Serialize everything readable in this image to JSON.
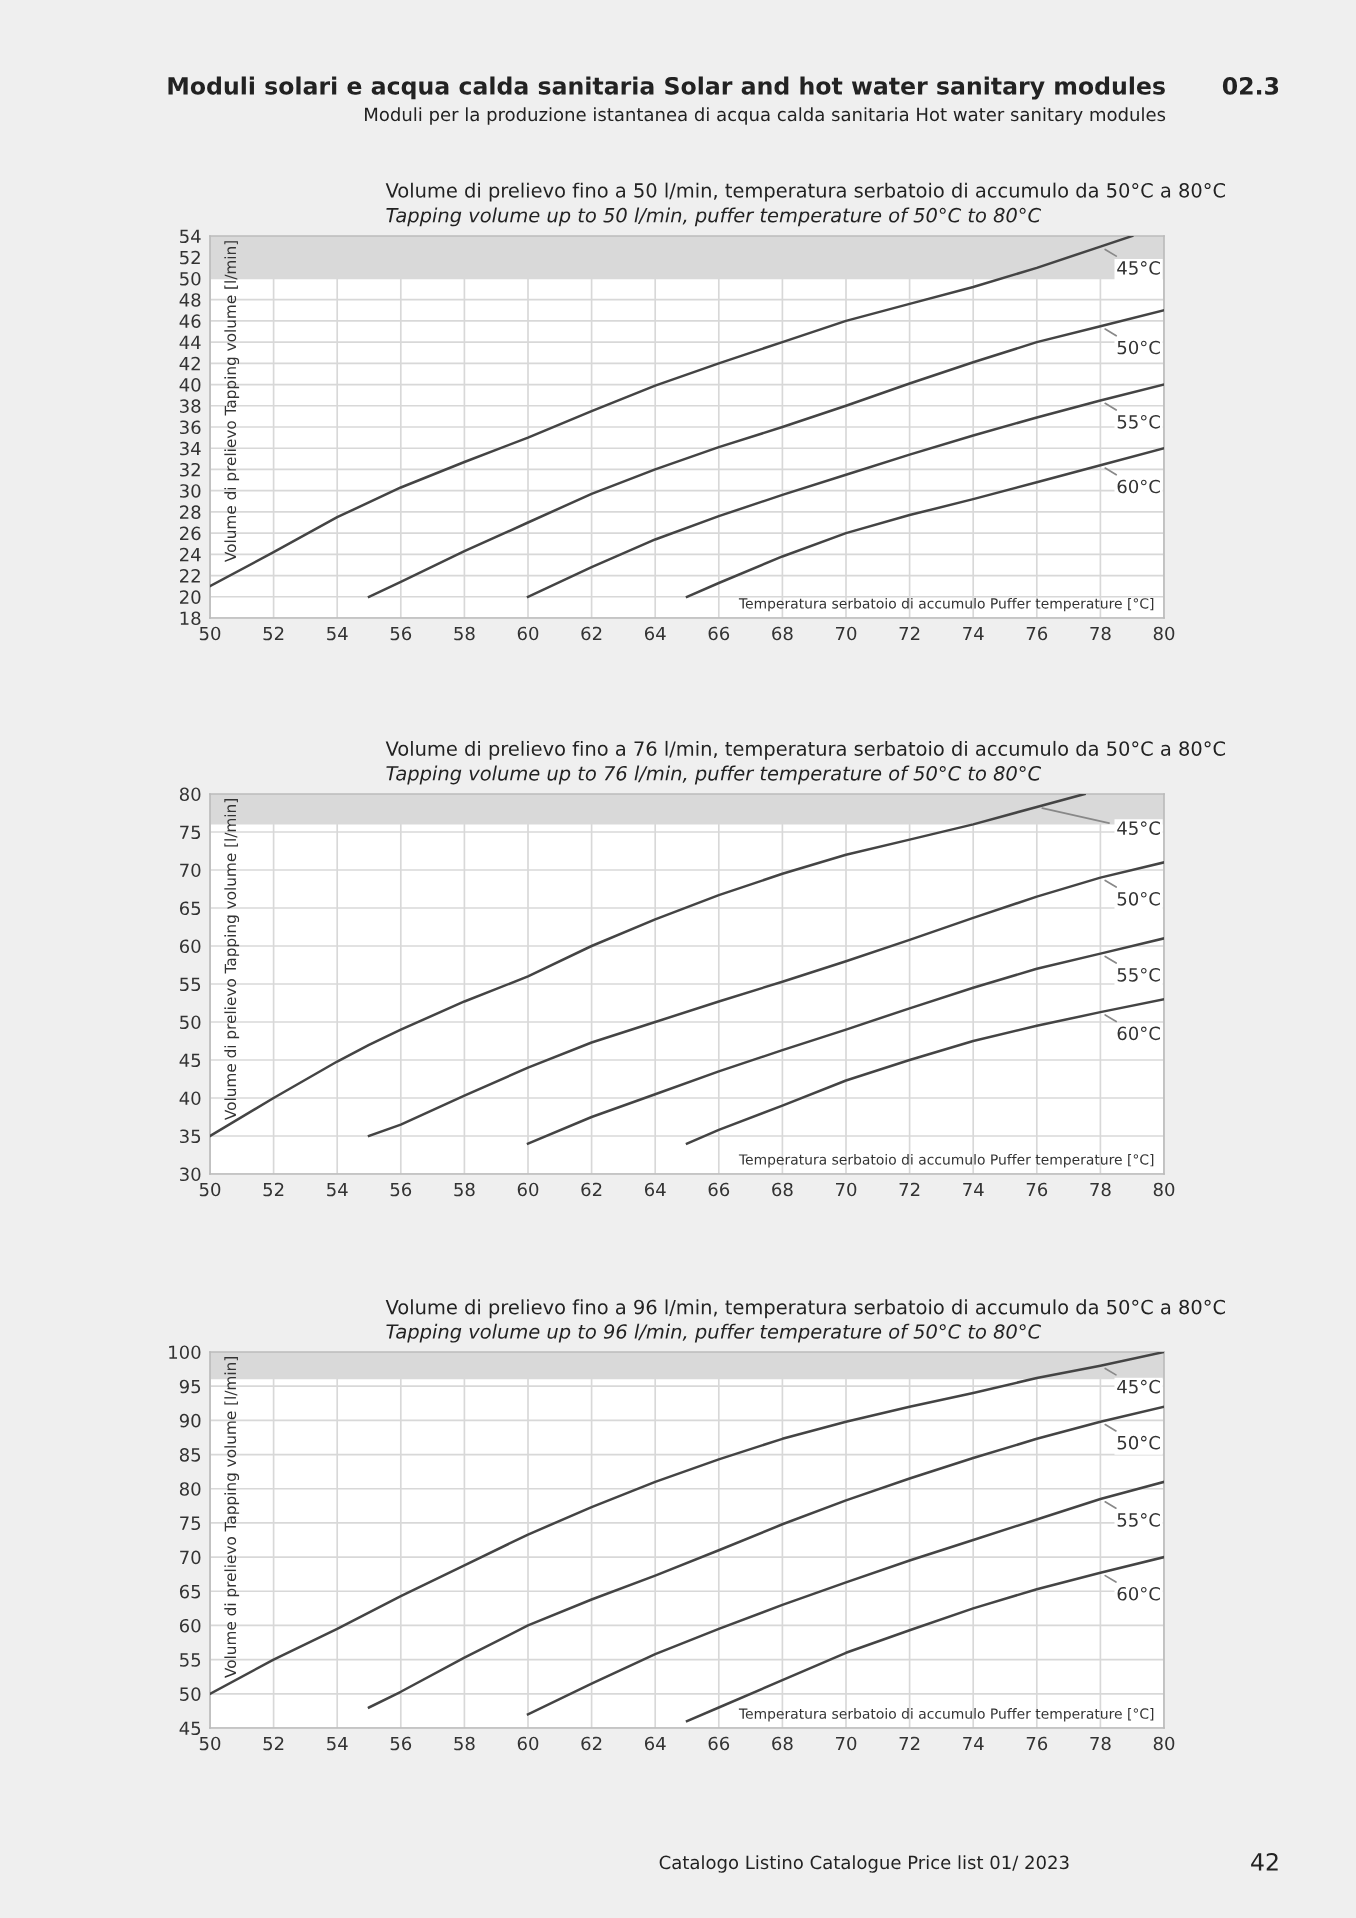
{
  "chart_data": [
    {
      "type": "line",
      "title": "Volume di prelievo fino a 50 l/min, temperatura serbatoio di accumulo da 50°C a 80°C",
      "subtitle": "Tapping volume up to 50 l/min, puffer temperature of 50°C to 80°C",
      "xlabel": "Temperatura serbatoio di accumulo Puffer temperature [°C]",
      "ylabel": "Volume di prelievo Tapping volume [l/min]",
      "annotations": [
        "Moduli solari e acqua calda sanitaria Solar and hot water sanitary modules",
        "02.3",
        "Moduli per la produzione istantanea di acqua calda sanitaria Hot water sanitary modules"
      ],
      "xlim": [
        50,
        80
      ],
      "xticks": [
        50,
        52,
        54,
        56,
        58,
        60,
        62,
        64,
        66,
        68,
        70,
        72,
        74,
        76,
        78,
        80
      ],
      "ylim": [
        18,
        54
      ],
      "yticks": [
        18,
        20,
        22,
        24,
        26,
        28,
        30,
        32,
        34,
        36,
        38,
        40,
        42,
        44,
        46,
        48,
        50,
        52,
        54
      ],
      "grid": true,
      "marker": "none",
      "line_style": "solid",
      "bands": [
        {
          "axis": "y",
          "from": 50,
          "to": 54,
          "color": "#d9d9d9"
        }
      ],
      "series": [
        {
          "name": "45°C",
          "color": "#444444",
          "x": [
            50,
            52,
            54,
            56,
            58,
            60,
            62,
            64,
            66,
            68,
            70,
            72,
            74,
            76,
            78,
            79
          ],
          "values": [
            21,
            24.2,
            27.5,
            30.3,
            32.7,
            35,
            37.5,
            39.9,
            42,
            44,
            46,
            47.6,
            49.2,
            51,
            53,
            54
          ]
        },
        {
          "name": "50°C",
          "color": "#444444",
          "x": [
            55,
            56,
            58,
            60,
            62,
            64,
            66,
            68,
            70,
            72,
            74,
            76,
            78,
            80
          ],
          "values": [
            20,
            21.4,
            24.3,
            27,
            29.7,
            32,
            34.1,
            36,
            38,
            40.1,
            42.1,
            44,
            45.5,
            47
          ]
        },
        {
          "name": "55°C",
          "color": "#444444",
          "x": [
            60,
            62,
            64,
            66,
            68,
            70,
            72,
            74,
            76,
            78,
            80
          ],
          "values": [
            20,
            22.8,
            25.4,
            27.6,
            29.6,
            31.5,
            33.4,
            35.2,
            36.9,
            38.5,
            40
          ]
        },
        {
          "name": "60°C",
          "color": "#444444",
          "x": [
            65,
            66,
            68,
            70,
            72,
            74,
            76,
            78,
            80
          ],
          "values": [
            20,
            21.3,
            23.8,
            26,
            27.7,
            29.2,
            30.8,
            32.4,
            34
          ]
        }
      ]
    },
    {
      "type": "line",
      "title": "Volume di prelievo fino a 76 l/min, temperatura serbatoio di accumulo da 50°C a 80°C",
      "subtitle": "Tapping volume up to 76 l/min, puffer temperature of 50°C to 80°C",
      "xlabel": "Temperatura serbatoio di accumulo Puffer temperature [°C]",
      "ylabel": "Volume di prelievo Tapping volume [l/min]",
      "xlim": [
        50,
        80
      ],
      "xticks": [
        50,
        52,
        54,
        56,
        58,
        60,
        62,
        64,
        66,
        68,
        70,
        72,
        74,
        76,
        78,
        80
      ],
      "ylim": [
        30,
        80
      ],
      "yticks": [
        30,
        35,
        40,
        45,
        50,
        55,
        60,
        65,
        70,
        75,
        80
      ],
      "grid": true,
      "marker": "none",
      "line_style": "solid",
      "bands": [
        {
          "axis": "y",
          "from": 76,
          "to": 80,
          "color": "#d9d9d9"
        }
      ],
      "series": [
        {
          "name": "45°C",
          "color": "#444444",
          "x": [
            50,
            52,
            54,
            55,
            56,
            58,
            60,
            62,
            64,
            66,
            68,
            70,
            72,
            74,
            76,
            77.5
          ],
          "values": [
            35,
            40,
            44.8,
            47,
            49,
            52.7,
            56,
            60,
            63.5,
            66.7,
            69.5,
            72,
            74,
            76,
            78.3,
            80
          ]
        },
        {
          "name": "50°C",
          "color": "#444444",
          "x": [
            55,
            56,
            58,
            60,
            62,
            64,
            66,
            68,
            70,
            72,
            74,
            76,
            78,
            80
          ],
          "values": [
            35,
            36.5,
            40.3,
            44,
            47.3,
            50,
            52.7,
            55.3,
            58,
            60.8,
            63.7,
            66.5,
            69,
            71
          ]
        },
        {
          "name": "55°C",
          "color": "#444444",
          "x": [
            60,
            62,
            64,
            66,
            68,
            70,
            72,
            74,
            76,
            78,
            80
          ],
          "values": [
            34,
            37.5,
            40.5,
            43.5,
            46.3,
            49,
            51.8,
            54.5,
            57,
            59,
            61
          ]
        },
        {
          "name": "60°C",
          "color": "#444444",
          "x": [
            65,
            66,
            68,
            70,
            72,
            74,
            76,
            78,
            80
          ],
          "values": [
            34,
            35.8,
            39,
            42.3,
            45,
            47.5,
            49.5,
            51.3,
            53
          ]
        }
      ]
    },
    {
      "type": "line",
      "title": "Volume di prelievo fino a 96 l/min, temperatura serbatoio di accumulo da 50°C a 80°C",
      "subtitle": "Tapping volume up to 96 l/min, puffer temperature of 50°C to 80°C",
      "xlabel": "Temperatura serbatoio di accumulo Puffer temperature [°C]",
      "ylabel": "Volume di prelievo Tapping volume [l/min]",
      "annotations": [
        "Catalogo Listino Catalogue Price list 01/ 2023",
        "42"
      ],
      "xlim": [
        50,
        80
      ],
      "xticks": [
        50,
        52,
        54,
        56,
        58,
        60,
        62,
        64,
        66,
        68,
        70,
        72,
        74,
        76,
        78,
        80
      ],
      "ylim": [
        45,
        100
      ],
      "yticks": [
        45,
        50,
        55,
        60,
        65,
        70,
        75,
        80,
        85,
        90,
        95,
        100
      ],
      "grid": true,
      "marker": "none",
      "line_style": "solid",
      "bands": [
        {
          "axis": "y",
          "from": 96,
          "to": 100,
          "color": "#d9d9d9"
        }
      ],
      "series": [
        {
          "name": "45°C",
          "color": "#444444",
          "x": [
            50,
            52,
            54,
            56,
            58,
            60,
            62,
            64,
            66,
            68,
            70,
            72,
            74,
            76,
            78,
            80
          ],
          "values": [
            50,
            55,
            59.5,
            64.3,
            68.8,
            73.3,
            77.3,
            81,
            84.3,
            87.3,
            89.8,
            92,
            94,
            96.2,
            98,
            100
          ]
        },
        {
          "name": "50°C",
          "color": "#444444",
          "x": [
            55,
            56,
            58,
            60,
            62,
            64,
            66,
            68,
            70,
            72,
            74,
            76,
            78,
            80
          ],
          "values": [
            48,
            50.3,
            55.3,
            60,
            63.8,
            67.3,
            71,
            74.8,
            78.3,
            81.5,
            84.5,
            87.3,
            89.8,
            92
          ]
        },
        {
          "name": "55°C",
          "color": "#444444",
          "x": [
            60,
            62,
            64,
            66,
            68,
            70,
            72,
            74,
            76,
            78,
            80
          ],
          "values": [
            47,
            51.5,
            55.8,
            59.5,
            63,
            66.3,
            69.5,
            72.5,
            75.5,
            78.5,
            81
          ]
        },
        {
          "name": "60°C",
          "color": "#444444",
          "x": [
            65,
            66,
            68,
            70,
            72,
            74,
            76,
            78,
            80
          ],
          "values": [
            46,
            48,
            52,
            56,
            59.3,
            62.5,
            65.3,
            67.7,
            70
          ]
        }
      ]
    }
  ]
}
